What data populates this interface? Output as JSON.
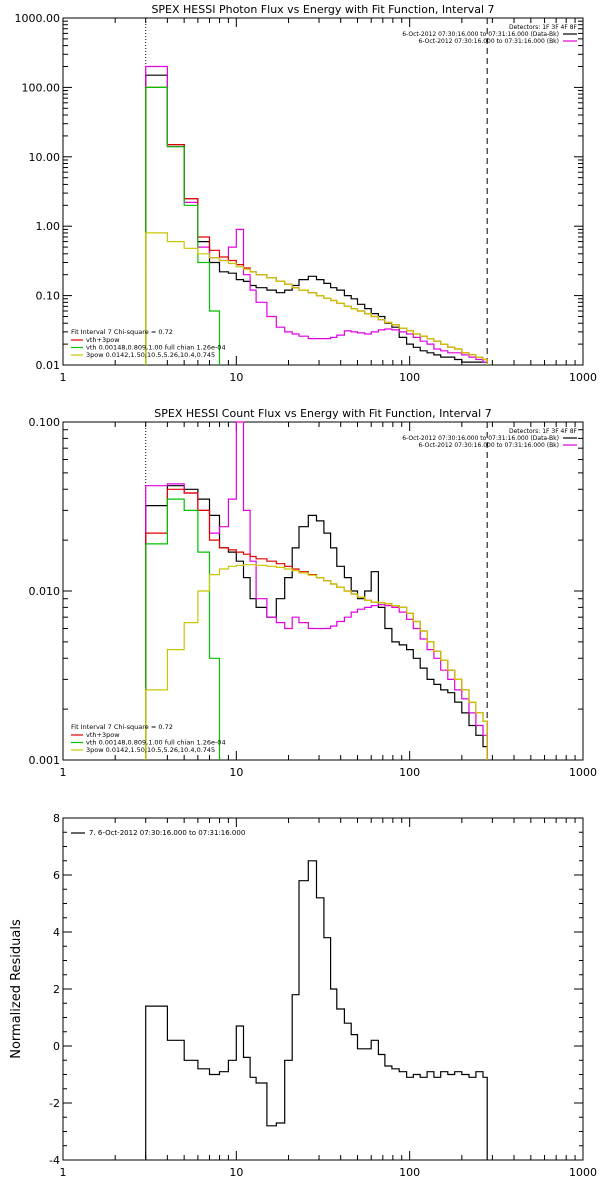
{
  "chart_data": [
    {
      "type": "line",
      "step": true,
      "title": "SPEX HESSI Photon Flux vs Energy with Fit Function, Interval 7",
      "xlabel": "",
      "ylabel": "",
      "xscale": "log",
      "yscale": "log",
      "xlim": [
        1,
        1000
      ],
      "ylim": [
        0.01,
        1000
      ],
      "x_ticks": [
        "1",
        "10",
        "100",
        "1000"
      ],
      "y_ticks": [
        "0.01",
        "0.10",
        "1.00",
        "10.00",
        "100.00",
        "1000.00"
      ],
      "y_tick_values": [
        0.01,
        0.1,
        1,
        10,
        100,
        1000
      ],
      "dotted_line_x": 3,
      "dashed_line_x": 280,
      "legend_top_right": [
        "Detectors: 1F 3F 4F 8F",
        "6-Oct-2012 07:30:16.000 to 07:31:16.000 (Data-Bk)",
        "6-Oct-2012 07:30:16.000 to 07:31:16.000 (Bk)"
      ],
      "legend_bottom_left": {
        "header": "Fit Interval 7   Chi-square = 0.72",
        "items": [
          "vth+3pow",
          "vth 0.00148,0.809,1.00  full chian 1.26e-04",
          "3pow 0.0142,1.50,10.5,5.26,10.4,0.745"
        ]
      },
      "series": [
        {
          "name": "6-Oct-2012 07:30:16.000 to 07:31:16.000 (Data-Bk)",
          "color": "#000000",
          "edges": [
            3,
            4,
            5,
            6,
            7,
            8,
            9,
            10,
            11,
            12,
            13,
            15,
            17,
            19,
            21,
            23,
            26,
            29,
            32,
            35,
            38,
            42,
            46,
            50,
            55,
            60,
            66,
            72,
            79,
            87,
            96,
            105,
            115,
            126,
            138,
            151,
            166,
            182,
            200,
            220,
            241,
            265,
            280
          ],
          "values": [
            150,
            15,
            2.5,
            0.6,
            0.3,
            0.22,
            0.21,
            0.17,
            0.16,
            0.14,
            0.13,
            0.12,
            0.11,
            0.12,
            0.14,
            0.17,
            0.19,
            0.17,
            0.15,
            0.13,
            0.12,
            0.1,
            0.09,
            0.075,
            0.065,
            0.055,
            0.05,
            0.04,
            0.035,
            0.025,
            0.02,
            0.018,
            0.016,
            0.015,
            0.014,
            0.013,
            0.013,
            0.012,
            0.011,
            0.011,
            0.011,
            0.011
          ]
        },
        {
          "name": "6-Oct-2012 07:30:16.000 to 07:31:16.000 (Bk)",
          "color": "#e000e0",
          "edges": [
            3,
            4,
            5,
            6,
            7,
            8,
            9,
            10,
            11,
            12,
            13,
            15,
            17,
            19,
            21,
            23,
            26,
            29,
            32,
            35,
            38,
            42,
            46,
            50,
            55,
            60,
            66,
            72,
            79,
            87,
            96,
            105,
            115,
            126,
            138,
            151,
            166,
            182,
            200,
            220,
            241,
            265,
            280
          ],
          "values": [
            200,
            14,
            2.2,
            0.5,
            0.35,
            0.32,
            0.5,
            0.9,
            0.2,
            0.12,
            0.08,
            0.05,
            0.035,
            0.03,
            0.028,
            0.026,
            0.024,
            0.024,
            0.024,
            0.025,
            0.027,
            0.031,
            0.03,
            0.029,
            0.028,
            0.03,
            0.032,
            0.033,
            0.032,
            0.03,
            0.028,
            0.025,
            0.022,
            0.02,
            0.017,
            0.016,
            0.015,
            0.015,
            0.014,
            0.013,
            0.012,
            0.011
          ]
        },
        {
          "name": "vth+3pow",
          "color": "#e00000",
          "edges": [
            3,
            4,
            5,
            6,
            7,
            8,
            9,
            10,
            11,
            12,
            13,
            15,
            17,
            19,
            21,
            23,
            26,
            29,
            32,
            35,
            38,
            42,
            46,
            50,
            55,
            60,
            66,
            72,
            79,
            87,
            96,
            105,
            115,
            126,
            138,
            151,
            166,
            182,
            200,
            220,
            241,
            265,
            280
          ],
          "values": [
            100,
            15,
            2.5,
            0.7,
            0.45,
            0.36,
            0.32,
            0.28,
            0.25,
            0.22,
            0.2,
            0.18,
            0.16,
            0.145,
            0.13,
            0.12,
            0.11,
            0.1,
            0.092,
            0.085,
            0.078,
            0.07,
            0.065,
            0.06,
            0.055,
            0.05,
            0.045,
            0.041,
            0.038,
            0.034,
            0.031,
            0.028,
            0.026,
            0.024,
            0.022,
            0.02,
            0.018,
            0.017,
            0.015,
            0.014,
            0.013,
            0.012
          ]
        },
        {
          "name": "vth 0.00148,0.809,1.00  full chian 1.26e-04",
          "color": "#00c000",
          "edges": [
            3,
            4,
            5,
            6,
            7,
            8
          ],
          "values": [
            100,
            14,
            2,
            0.3,
            0.06
          ]
        },
        {
          "name": "3pow 0.0142,1.50,10.5,5.26,10.4,0.745",
          "color": "#c8c800",
          "edges": [
            3,
            4,
            5,
            6,
            7,
            8,
            9,
            10,
            11,
            12,
            13,
            15,
            17,
            19,
            21,
            23,
            26,
            29,
            32,
            35,
            38,
            42,
            46,
            50,
            55,
            60,
            66,
            72,
            79,
            87,
            96,
            105,
            115,
            126,
            138,
            151,
            166,
            182,
            200,
            220,
            241,
            265,
            280
          ],
          "values": [
            0.8,
            0.6,
            0.48,
            0.4,
            0.35,
            0.32,
            0.29,
            0.26,
            0.24,
            0.22,
            0.2,
            0.18,
            0.16,
            0.145,
            0.13,
            0.12,
            0.11,
            0.1,
            0.092,
            0.085,
            0.078,
            0.07,
            0.065,
            0.06,
            0.055,
            0.05,
            0.045,
            0.041,
            0.038,
            0.034,
            0.031,
            0.028,
            0.026,
            0.024,
            0.022,
            0.02,
            0.018,
            0.017,
            0.015,
            0.014,
            0.013,
            0.012
          ]
        }
      ]
    },
    {
      "type": "line",
      "step": true,
      "title": "SPEX HESSI Count Flux vs Energy with Fit Function, Interval 7",
      "xlabel": "",
      "ylabel": "",
      "xscale": "log",
      "yscale": "log",
      "xlim": [
        1,
        1000
      ],
      "ylim": [
        0.001,
        0.1
      ],
      "x_ticks": [
        "1",
        "10",
        "100",
        "1000"
      ],
      "y_ticks": [
        "0.001",
        "0.010",
        "0.100"
      ],
      "y_tick_values": [
        0.001,
        0.01,
        0.1
      ],
      "dotted_line_x": 3,
      "dashed_line_x": 280,
      "legend_top_right": [
        "Detectors: 1F 3F 4F 8F",
        "6-Oct-2012 07:30:16.000 to 07:31:16.000 (Data-Bk)",
        "6-Oct-2012 07:30:16.000 to 07:31:16.000 (Bk)"
      ],
      "legend_bottom_left": {
        "header": "Fit Interval 7   Chi-square = 0.72",
        "items": [
          "vth+3pow",
          "vth 0.00148,0.809,1.00  full chian 1.26e-04",
          "3pow 0.0142,1.50,10.5,5.26,10.4,0.745"
        ]
      },
      "series": [
        {
          "name": "6-Oct-2012 07:30:16.000 to 07:31:16.000 (Data-Bk)",
          "color": "#000000",
          "edges": [
            3,
            4,
            5,
            6,
            7,
            8,
            9,
            10,
            11,
            12,
            13,
            15,
            17,
            19,
            21,
            23,
            26,
            29,
            32,
            35,
            38,
            42,
            46,
            50,
            55,
            60,
            66,
            72,
            79,
            87,
            96,
            105,
            115,
            126,
            138,
            151,
            166,
            182,
            200,
            220,
            241,
            265,
            280
          ],
          "values": [
            0.032,
            0.042,
            0.04,
            0.035,
            0.028,
            0.018,
            0.017,
            0.015,
            0.012,
            0.009,
            0.008,
            0.007,
            0.009,
            0.012,
            0.018,
            0.024,
            0.028,
            0.026,
            0.022,
            0.018,
            0.014,
            0.012,
            0.01,
            0.009,
            0.01,
            0.013,
            0.008,
            0.006,
            0.005,
            0.0048,
            0.0045,
            0.004,
            0.0035,
            0.003,
            0.0028,
            0.0026,
            0.0025,
            0.0022,
            0.0019,
            0.0016,
            0.0014,
            0.0012
          ]
        },
        {
          "name": "6-Oct-2012 07:30:16.000 to 07:31:16.000 (Bk)",
          "color": "#e000e0",
          "edges": [
            3,
            4,
            5,
            6,
            7,
            8,
            9,
            10,
            11,
            12,
            13,
            15,
            17,
            19,
            21,
            23,
            26,
            29,
            32,
            35,
            38,
            42,
            46,
            50,
            55,
            60,
            66,
            72,
            79,
            87,
            96,
            105,
            115,
            126,
            138,
            151,
            166,
            182,
            200,
            220,
            241,
            265,
            280
          ],
          "values": [
            0.042,
            0.043,
            0.038,
            0.03,
            0.022,
            0.024,
            0.035,
            0.1,
            0.03,
            0.015,
            0.009,
            0.007,
            0.0065,
            0.006,
            0.007,
            0.0065,
            0.006,
            0.006,
            0.006,
            0.0062,
            0.0066,
            0.007,
            0.0075,
            0.0078,
            0.008,
            0.0082,
            0.0083,
            0.0082,
            0.008,
            0.0075,
            0.0068,
            0.006,
            0.0052,
            0.0045,
            0.004,
            0.0034,
            0.003,
            0.0026,
            0.0023,
            0.0019,
            0.0016,
            0.0014
          ]
        },
        {
          "name": "vth+3pow",
          "color": "#e00000",
          "edges": [
            3,
            4,
            5,
            6,
            7,
            8,
            9,
            10,
            11,
            12,
            13,
            15,
            17,
            19,
            21,
            23,
            26,
            29,
            32,
            35,
            38,
            42,
            46,
            50,
            55,
            60,
            66,
            72,
            79,
            87,
            96,
            105,
            115,
            126,
            138,
            151,
            166,
            182,
            200,
            220,
            241,
            265,
            280
          ],
          "values": [
            0.022,
            0.04,
            0.038,
            0.03,
            0.02,
            0.018,
            0.0175,
            0.017,
            0.0165,
            0.016,
            0.0155,
            0.015,
            0.0145,
            0.014,
            0.0135,
            0.013,
            0.0125,
            0.012,
            0.0115,
            0.011,
            0.0105,
            0.01,
            0.0096,
            0.0092,
            0.0088,
            0.0086,
            0.0085,
            0.0084,
            0.0082,
            0.008,
            0.0074,
            0.0066,
            0.0058,
            0.005,
            0.0044,
            0.0039,
            0.0034,
            0.003,
            0.0026,
            0.0022,
            0.0019,
            0.0017
          ]
        },
        {
          "name": "vth 0.00148,0.809,1.00  full chian 1.26e-04",
          "color": "#00c000",
          "edges": [
            3,
            4,
            5,
            6,
            7,
            8
          ],
          "values": [
            0.019,
            0.035,
            0.03,
            0.017,
            0.004
          ]
        },
        {
          "name": "3pow 0.0142,1.50,10.5,5.26,10.4,0.745",
          "color": "#c8c800",
          "edges": [
            3,
            4,
            5,
            6,
            7,
            8,
            9,
            10,
            11,
            12,
            13,
            15,
            17,
            19,
            21,
            23,
            26,
            29,
            32,
            35,
            38,
            42,
            46,
            50,
            55,
            60,
            66,
            72,
            79,
            87,
            96,
            105,
            115,
            126,
            138,
            151,
            166,
            182,
            200,
            220,
            241,
            265,
            280
          ],
          "values": [
            0.0026,
            0.0045,
            0.0065,
            0.01,
            0.0125,
            0.0135,
            0.014,
            0.0142,
            0.0143,
            0.0143,
            0.0142,
            0.014,
            0.0138,
            0.0135,
            0.0132,
            0.0128,
            0.0124,
            0.012,
            0.0115,
            0.011,
            0.0105,
            0.01,
            0.0096,
            0.0092,
            0.0088,
            0.0086,
            0.0085,
            0.0084,
            0.0082,
            0.008,
            0.0074,
            0.0066,
            0.0058,
            0.005,
            0.0044,
            0.0039,
            0.0034,
            0.003,
            0.0026,
            0.0022,
            0.0019,
            0.0017
          ]
        }
      ]
    },
    {
      "type": "line",
      "step": true,
      "title": "",
      "xlabel": "",
      "ylabel": "Normalized Residuals",
      "xscale": "log",
      "yscale": "linear",
      "xlim": [
        1,
        1000
      ],
      "ylim": [
        -4,
        8
      ],
      "x_ticks": [
        "1",
        "10",
        "100",
        "1000"
      ],
      "y_ticks": [
        "-4",
        "-2",
        "0",
        "2",
        "4",
        "6",
        "8"
      ],
      "y_tick_values": [
        -4,
        -2,
        0,
        2,
        4,
        6,
        8
      ],
      "legend_top_left": [
        "7.  6-Oct-2012 07:30:16.000 to 07:31:16.000"
      ],
      "series": [
        {
          "name": "7.  6-Oct-2012 07:30:16.000 to 07:31:16.000",
          "color": "#000000",
          "edges": [
            3,
            4,
            5,
            6,
            7,
            8,
            9,
            10,
            11,
            12,
            13,
            15,
            17,
            19,
            21,
            23,
            26,
            29,
            32,
            35,
            38,
            42,
            46,
            50,
            55,
            60,
            66,
            72,
            79,
            87,
            96,
            105,
            115,
            126,
            138,
            151,
            166,
            182,
            200,
            220,
            241,
            265,
            280
          ],
          "values": [
            1.4,
            0.2,
            -0.5,
            -0.8,
            -1,
            -0.9,
            -0.5,
            0.7,
            -0.4,
            -1.1,
            -1.3,
            -2.8,
            -2.7,
            -0.5,
            1.8,
            5.8,
            6.5,
            5.2,
            3.8,
            2.0,
            1.3,
            0.8,
            0.4,
            -0.1,
            -0.1,
            0.2,
            -0.3,
            -0.7,
            -0.8,
            -0.9,
            -1.1,
            -1.0,
            -1.1,
            -0.9,
            -1.1,
            -0.9,
            -1.0,
            -0.9,
            -1.0,
            -1.1,
            -0.9,
            -1.1
          ]
        }
      ]
    }
  ]
}
